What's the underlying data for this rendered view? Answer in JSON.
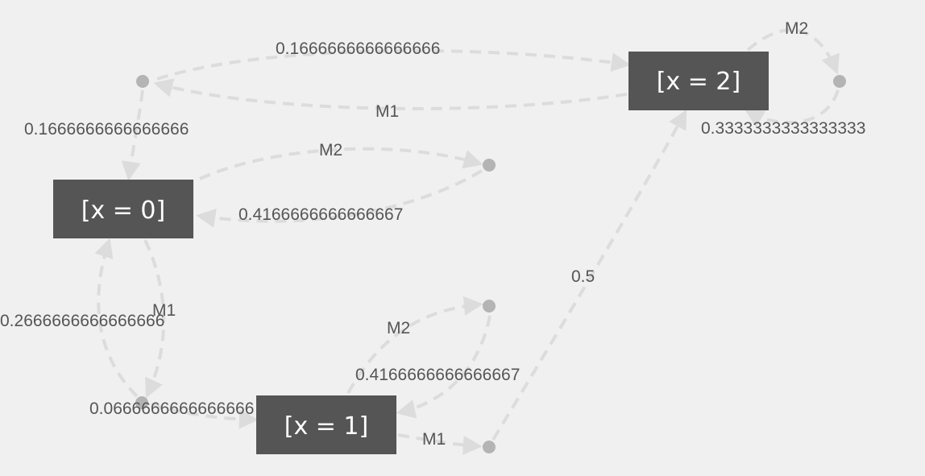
{
  "states": [
    {
      "id": "s0",
      "label": "[x = 0]"
    },
    {
      "id": "s1",
      "label": "[x = 1]"
    },
    {
      "id": "s2",
      "label": "[x = 2]"
    }
  ],
  "edge_labels": {
    "top_prob": "0.1666666666666666",
    "top_action": "M1",
    "left_prob": "0.1666666666666666",
    "mid_action": "M2",
    "mid_prob": "0.4166666666666667",
    "s2_action": "M2",
    "s2_prob": "0.3333333333333333",
    "s0_action": "M1",
    "s0_loop_prob": "0.2666666666666666",
    "bottom_prob": "0.0666666666666666",
    "s1_action_m2": "M2",
    "s1_prob": "0.4166666666666667",
    "s1_action_m1": "M1",
    "to_s2_prob": "0.5"
  }
}
